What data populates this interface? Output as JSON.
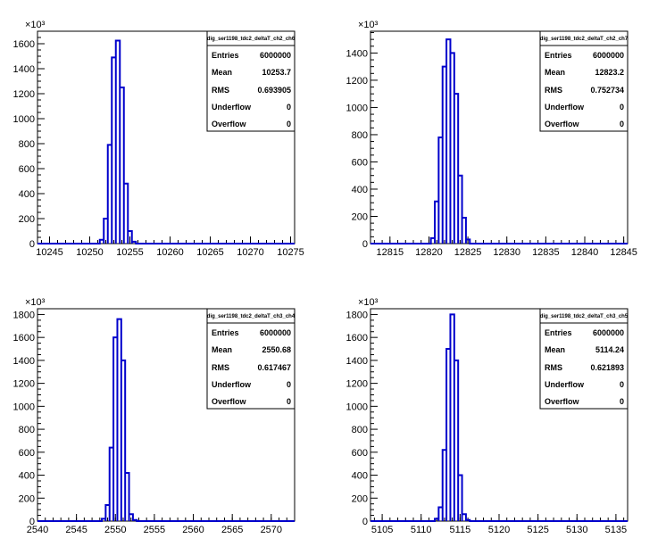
{
  "chart_data": [
    {
      "type": "bar",
      "title": "dig_ser1198_tdc2_deltaT_ch2_ch6",
      "xlim": [
        10243.5,
        10275.5
      ],
      "ylim": [
        0,
        1700
      ],
      "y_multiplier": "×10³",
      "x_ticks": [
        10245,
        10250,
        10255,
        10260,
        10265,
        10270,
        10275
      ],
      "y_ticks": [
        0,
        200,
        400,
        600,
        800,
        1000,
        1200,
        1400,
        1600
      ],
      "bin_width": 0.5,
      "bins": [
        {
          "x": 10251.5,
          "y": 30
        },
        {
          "x": 10252.0,
          "y": 200
        },
        {
          "x": 10252.5,
          "y": 790
        },
        {
          "x": 10253.0,
          "y": 1490
        },
        {
          "x": 10253.5,
          "y": 1625
        },
        {
          "x": 10254.0,
          "y": 1250
        },
        {
          "x": 10254.5,
          "y": 480
        },
        {
          "x": 10255.0,
          "y": 100
        },
        {
          "x": 10255.5,
          "y": 15
        }
      ],
      "stats": [
        {
          "label": "Entries",
          "value": "6000000"
        },
        {
          "label": "Mean",
          "value": "10253.7"
        },
        {
          "label": "RMS",
          "value": "0.693905"
        },
        {
          "label": "Underflow",
          "value": "0"
        },
        {
          "label": "Overflow",
          "value": "0"
        }
      ]
    },
    {
      "type": "bar",
      "title": "dig_ser1198_tdc2_deltaT_ch2_ch7",
      "xlim": [
        12812.5,
        12845.5
      ],
      "ylim": [
        0,
        1560
      ],
      "y_multiplier": "×10³",
      "x_ticks": [
        12815,
        12820,
        12825,
        12830,
        12835,
        12840,
        12845
      ],
      "y_ticks": [
        0,
        200,
        400,
        600,
        800,
        1000,
        1200,
        1400
      ],
      "bin_width": 0.5,
      "bins": [
        {
          "x": 12820.5,
          "y": 40
        },
        {
          "x": 12821.0,
          "y": 310
        },
        {
          "x": 12821.5,
          "y": 780
        },
        {
          "x": 12822.0,
          "y": 1300
        },
        {
          "x": 12822.5,
          "y": 1500
        },
        {
          "x": 12823.0,
          "y": 1400
        },
        {
          "x": 12823.5,
          "y": 1100
        },
        {
          "x": 12824.0,
          "y": 500
        },
        {
          "x": 12824.5,
          "y": 190
        },
        {
          "x": 12825.0,
          "y": 30
        }
      ],
      "stats": [
        {
          "label": "Entries",
          "value": "6000000"
        },
        {
          "label": "Mean",
          "value": "12823.2"
        },
        {
          "label": "RMS",
          "value": "0.752734"
        },
        {
          "label": "Underflow",
          "value": "0"
        },
        {
          "label": "Overflow",
          "value": "0"
        }
      ]
    },
    {
      "type": "bar",
      "title": "dig_ser1198_tdc2_deltaT_ch3_ch4",
      "xlim": [
        2540,
        2573
      ],
      "ylim": [
        0,
        1850
      ],
      "y_multiplier": "×10³",
      "x_ticks": [
        2540,
        2545,
        2550,
        2555,
        2560,
        2565,
        2570
      ],
      "y_ticks": [
        0,
        200,
        400,
        600,
        800,
        1000,
        1200,
        1400,
        1600,
        1800
      ],
      "bin_width": 0.5,
      "bins": [
        {
          "x": 2548.5,
          "y": 20
        },
        {
          "x": 2549.0,
          "y": 140
        },
        {
          "x": 2549.5,
          "y": 640
        },
        {
          "x": 2550.0,
          "y": 1600
        },
        {
          "x": 2550.5,
          "y": 1760
        },
        {
          "x": 2551.0,
          "y": 1400
        },
        {
          "x": 2551.5,
          "y": 420
        },
        {
          "x": 2552.0,
          "y": 60
        },
        {
          "x": 2552.5,
          "y": 10
        }
      ],
      "stats": [
        {
          "label": "Entries",
          "value": "6000000"
        },
        {
          "label": "Mean",
          "value": "2550.68"
        },
        {
          "label": "RMS",
          "value": "0.617467"
        },
        {
          "label": "Underflow",
          "value": "0"
        },
        {
          "label": "Overflow",
          "value": "0"
        }
      ]
    },
    {
      "type": "bar",
      "title": "dig_ser1198_tdc2_deltaT_ch3_ch5",
      "xlim": [
        5103.5,
        5136.5
      ],
      "ylim": [
        0,
        1850
      ],
      "y_multiplier": "×10³",
      "x_ticks": [
        5105,
        5110,
        5115,
        5120,
        5125,
        5130,
        5135
      ],
      "y_ticks": [
        0,
        200,
        400,
        600,
        800,
        1000,
        1200,
        1400,
        1600,
        1800
      ],
      "bin_width": 0.5,
      "bins": [
        {
          "x": 5112.0,
          "y": 20
        },
        {
          "x": 5112.5,
          "y": 120
        },
        {
          "x": 5113.0,
          "y": 620
        },
        {
          "x": 5113.5,
          "y": 1500
        },
        {
          "x": 5114.0,
          "y": 1800
        },
        {
          "x": 5114.5,
          "y": 1400
        },
        {
          "x": 5115.0,
          "y": 400
        },
        {
          "x": 5115.5,
          "y": 60
        },
        {
          "x": 5116.0,
          "y": 10
        }
      ],
      "stats": [
        {
          "label": "Entries",
          "value": "6000000"
        },
        {
          "label": "Mean",
          "value": "5114.24"
        },
        {
          "label": "RMS",
          "value": "0.621893"
        },
        {
          "label": "Underflow",
          "value": "0"
        },
        {
          "label": "Overflow",
          "value": "0"
        }
      ]
    }
  ]
}
